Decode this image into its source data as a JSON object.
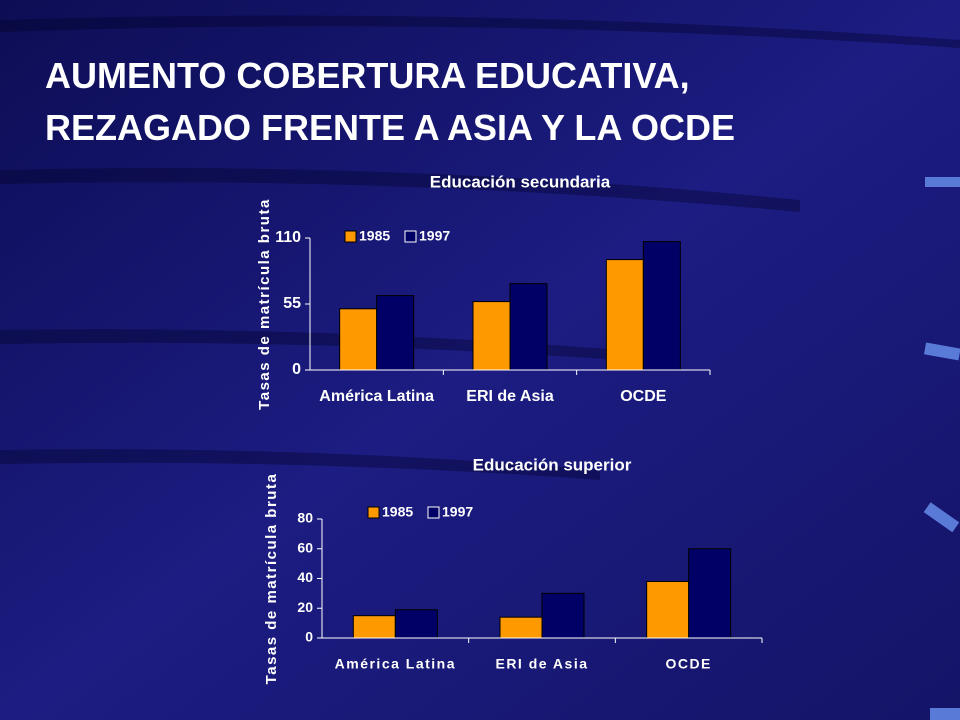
{
  "title_lines": [
    "AUMENTO COBERTURA EDUCATIVA,",
    "REZAGADO FRENTE A ASIA Y LA OCDE"
  ],
  "chart_data": [
    {
      "type": "bar",
      "title": "Educación secundaria",
      "y_label": "Tasas de matrícula bruta",
      "categories": [
        "América Latina",
        "ERI de Asia",
        "OCDE"
      ],
      "series": [
        {
          "name": "1985",
          "color": "#ff9900",
          "values": [
            51,
            57,
            92
          ]
        },
        {
          "name": "1997",
          "color": "#000066",
          "values": [
            62,
            72,
            107
          ]
        }
      ],
      "ylim": [
        0,
        110
      ],
      "yticks": [
        0,
        55,
        110
      ]
    },
    {
      "type": "bar",
      "title": "Educación superior",
      "y_label": "Tasas de matrícula bruta",
      "categories": [
        "América Latina",
        "ERI de Asia",
        "OCDE"
      ],
      "series": [
        {
          "name": "1985",
          "color": "#ff9900",
          "values": [
            15,
            14,
            38
          ]
        },
        {
          "name": "1997",
          "color": "#000066",
          "values": [
            19,
            30,
            60
          ]
        }
      ],
      "ylim": [
        0,
        80
      ],
      "yticks": [
        0,
        20,
        40,
        60,
        80
      ]
    }
  ]
}
